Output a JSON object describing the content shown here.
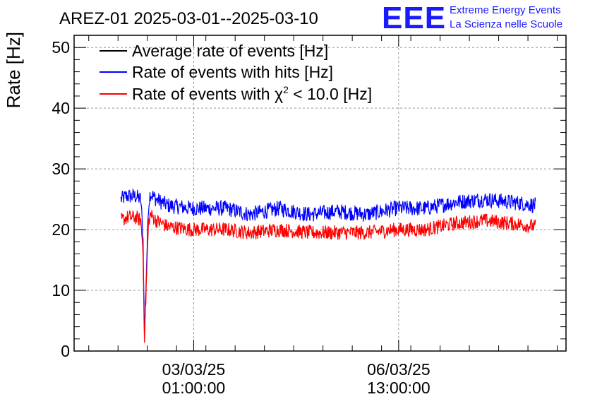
{
  "chart_data": {
    "type": "line",
    "title": "AREZ-01 2025-03-01--2025-03-10",
    "xlabel": "",
    "ylabel": "Rate [Hz]",
    "ylim": [
      0,
      52
    ],
    "yticks": [
      0,
      10,
      20,
      30,
      40,
      50
    ],
    "xlim": [
      0,
      8.4
    ],
    "x_units": "days since 2025-03-01 00:00",
    "xticks": [
      {
        "x": 2.042,
        "date": "03/03/25",
        "time": "01:00:00"
      },
      {
        "x": 5.542,
        "date": "06/03/25",
        "time": "13:00:00"
      }
    ],
    "grid": true,
    "legend": {
      "placement": "top-left",
      "entries": [
        {
          "label": "Average rate of events [Hz]",
          "color": "#000000"
        },
        {
          "label": "Rate of events with hits [Hz]",
          "color": "#0000ff"
        },
        {
          "label_prefix": "Rate of events with ",
          "label_symbol": "χ",
          "label_sup": "2",
          "label_suffix": " < 10.0 [Hz]",
          "color": "#ff0000"
        }
      ]
    },
    "series": [
      {
        "name": "Rate of events with hits [Hz]",
        "color": "#0000ff",
        "noise": 1.3,
        "points": [
          [
            0.8,
            25
          ],
          [
            0.9,
            25.5
          ],
          [
            1.05,
            25.5
          ],
          [
            1.14,
            25
          ],
          [
            1.18,
            18
          ],
          [
            1.2,
            2
          ],
          [
            1.23,
            12
          ],
          [
            1.27,
            24
          ],
          [
            1.3,
            26
          ],
          [
            1.4,
            25
          ],
          [
            1.6,
            24
          ],
          [
            2.0,
            23.5
          ],
          [
            2.6,
            23.5
          ],
          [
            3.0,
            22.5
          ],
          [
            3.5,
            23.5
          ],
          [
            4.0,
            22.5
          ],
          [
            4.5,
            23
          ],
          [
            5.0,
            22.5
          ],
          [
            5.5,
            23.5
          ],
          [
            6.0,
            23.5
          ],
          [
            6.5,
            24.5
          ],
          [
            7.0,
            25
          ],
          [
            7.5,
            24.5
          ],
          [
            7.88,
            24
          ]
        ]
      },
      {
        "name": "Rate of events with χ2 < 10.0 [Hz]",
        "color": "#ff0000",
        "noise": 1.2,
        "points": [
          [
            0.8,
            21.5
          ],
          [
            0.9,
            22
          ],
          [
            1.05,
            22
          ],
          [
            1.14,
            21.5
          ],
          [
            1.18,
            16
          ],
          [
            1.2,
            1
          ],
          [
            1.23,
            10
          ],
          [
            1.27,
            21
          ],
          [
            1.3,
            22.5
          ],
          [
            1.4,
            21.5
          ],
          [
            1.6,
            20.5
          ],
          [
            2.0,
            20
          ],
          [
            2.6,
            20
          ],
          [
            3.0,
            19.5
          ],
          [
            3.5,
            20
          ],
          [
            4.0,
            19.5
          ],
          [
            4.5,
            19.5
          ],
          [
            5.0,
            19.5
          ],
          [
            5.5,
            20
          ],
          [
            6.0,
            20
          ],
          [
            6.5,
            21
          ],
          [
            7.0,
            21.5
          ],
          [
            7.5,
            21
          ],
          [
            7.88,
            20.5
          ]
        ]
      }
    ]
  },
  "logo": {
    "text": "EEE",
    "line1": "Extreme Energy Events",
    "line2": "La Scienza nelle Scuole",
    "color": "#1a1aff"
  }
}
